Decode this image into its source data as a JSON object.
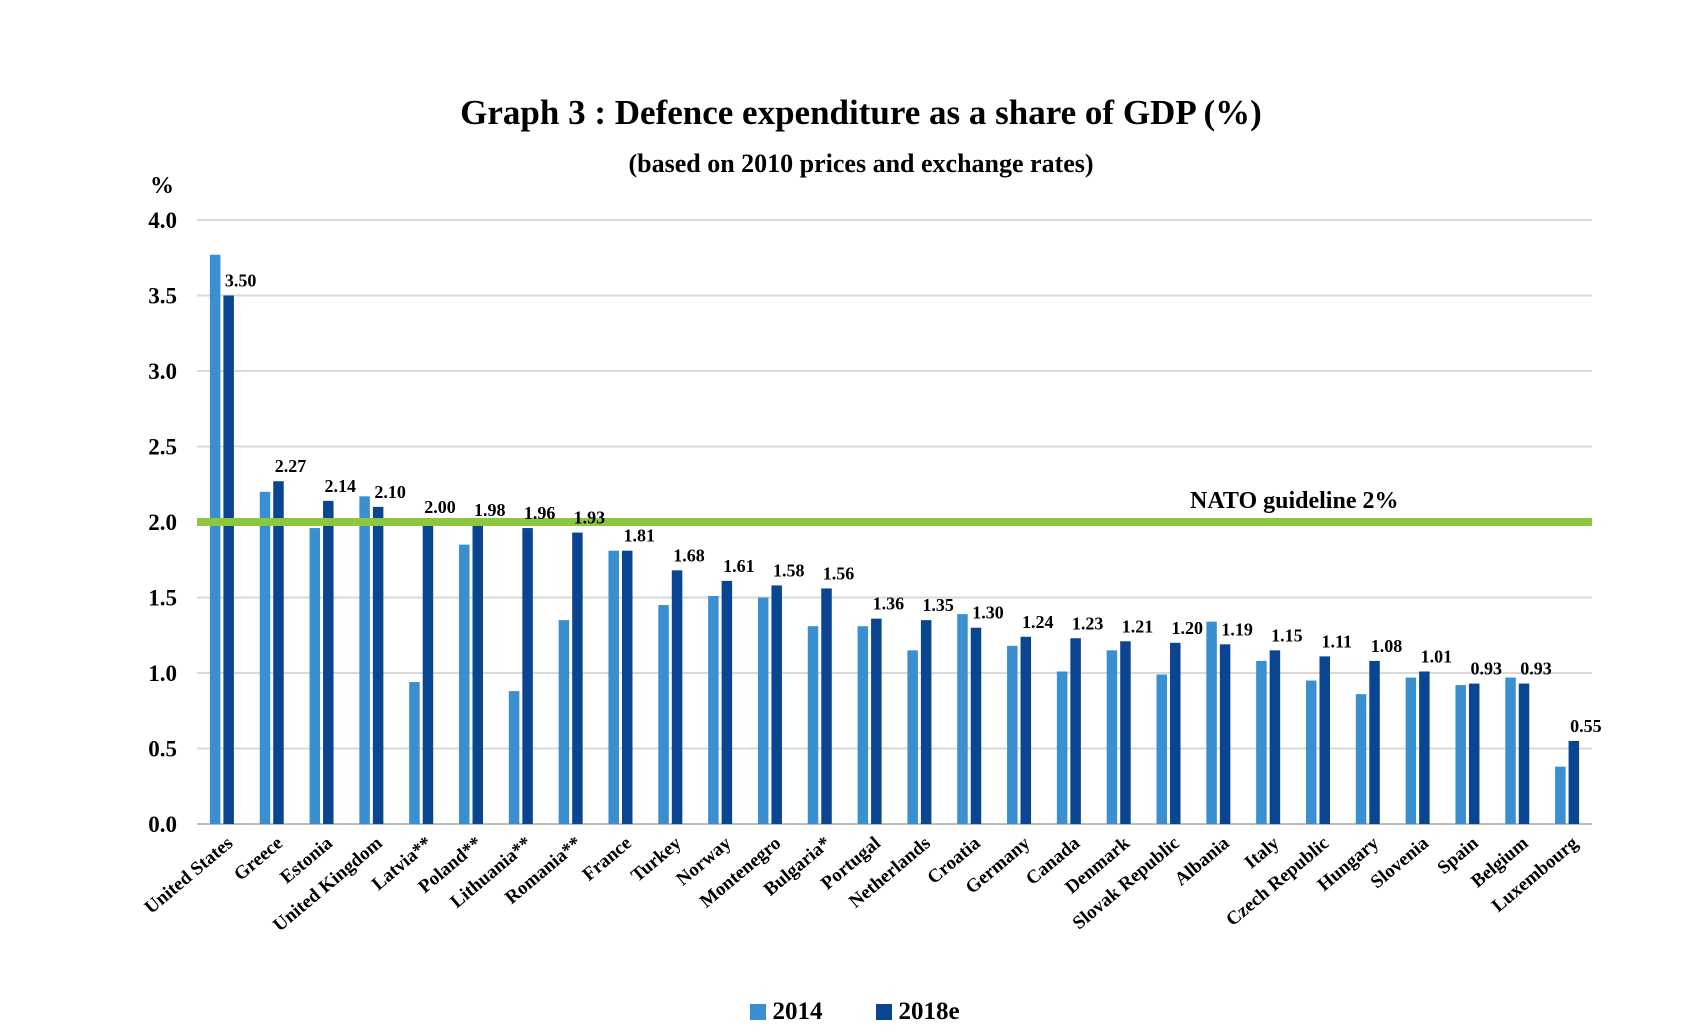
{
  "chart_data": {
    "type": "bar",
    "title": "Graph 3 : Defence expenditure as a share of GDP (%)",
    "subtitle": "(based on 2010 prices and exchange rates)",
    "ylabel": "%",
    "ylim": [
      0,
      4.0
    ],
    "yticks": [
      "0.0",
      "0.5",
      "1.0",
      "1.5",
      "2.0",
      "2.5",
      "3.0",
      "3.5",
      "4.0"
    ],
    "grid": true,
    "legend_position": "bottom",
    "categories": [
      "United States",
      "Greece",
      "Estonia",
      "United Kingdom",
      "Latvia**",
      "Poland**",
      "Lithuania**",
      "Romania**",
      "France",
      "Turkey",
      "Norway",
      "Montenegro",
      "Bulgaria*",
      "Portugal",
      "Netherlands",
      "Croatia",
      "Germany",
      "Canada",
      "Denmark",
      "Slovak Republic",
      "Albania",
      "Italy",
      "Czech Republic",
      "Hungary",
      "Slovenia",
      "Spain",
      "Belgium",
      "Luxembourg"
    ],
    "series": [
      {
        "name": "2014",
        "color": "#3a8fd0",
        "values": [
          3.77,
          2.2,
          1.96,
          2.17,
          0.94,
          1.85,
          0.88,
          1.35,
          1.81,
          1.45,
          1.51,
          1.5,
          1.31,
          1.31,
          1.15,
          1.39,
          1.18,
          1.01,
          1.15,
          0.99,
          1.34,
          1.08,
          0.95,
          0.86,
          0.97,
          0.92,
          0.97,
          0.38
        ]
      },
      {
        "name": "2018e",
        "color": "#0a4592",
        "values": [
          3.5,
          2.27,
          2.14,
          2.1,
          2.0,
          1.98,
          1.96,
          1.93,
          1.81,
          1.68,
          1.61,
          1.58,
          1.56,
          1.36,
          1.35,
          1.3,
          1.24,
          1.23,
          1.21,
          1.2,
          1.19,
          1.15,
          1.11,
          1.08,
          1.01,
          0.93,
          0.93,
          0.55
        ]
      }
    ],
    "data_labels_2018e": [
      "3.50",
      "2.27",
      "2.14",
      "2.10",
      "2.00",
      "1.98",
      "1.96",
      "1.93",
      "1.81",
      "1.68",
      "1.61",
      "1.58",
      "1.56",
      "1.36",
      "1.35",
      "1.30",
      "1.24",
      "1.23",
      "1.21",
      "1.20",
      "1.19",
      "1.15",
      "1.11",
      "1.08",
      "1.01",
      "0.93",
      "0.93",
      "0.55"
    ],
    "reference_line": {
      "value": 2.0,
      "label": "NATO guideline 2%",
      "color": "#8dc63f"
    }
  }
}
